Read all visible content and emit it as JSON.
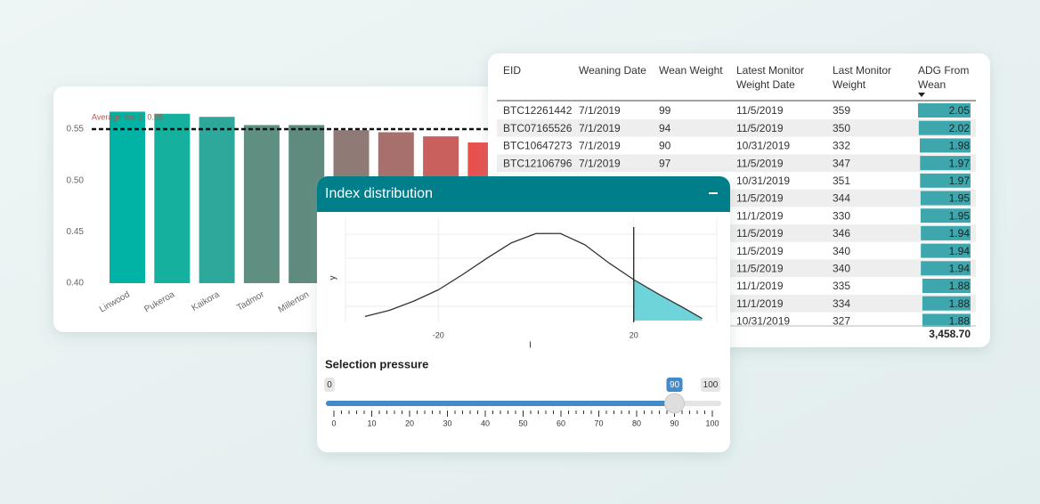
{
  "bar_panel": {
    "type": "bar",
    "annotation": "Average line 1: 0.55",
    "average": 0.55,
    "categories": [
      "Linwood",
      "Pukeroa",
      "Kaikora",
      "Tadmor",
      "Millerton",
      null,
      null,
      null,
      null
    ],
    "values": [
      0.567,
      0.565,
      0.562,
      0.554,
      0.554,
      0.549,
      0.547,
      0.543,
      0.537
    ],
    "colors": [
      "#00b3a4",
      "#16b09f",
      "#2ea89a",
      "#5e8f80",
      "#5f8b7e",
      "#8f7a76",
      "#a8706c",
      "#c9605e",
      "#e8504f"
    ],
    "ylim": [
      0.4,
      0.59
    ],
    "yticks": [
      {
        "value": 0.4,
        "label": "0.40"
      },
      {
        "value": 0.45,
        "label": "0.45"
      },
      {
        "value": 0.5,
        "label": "0.50"
      },
      {
        "value": 0.55,
        "label": "0.55"
      }
    ]
  },
  "table": {
    "headers": [
      [
        "EID"
      ],
      [
        "Weaning Date"
      ],
      [
        "Wean Weight"
      ],
      [
        "Latest Monitor",
        "Weight Date"
      ],
      [
        "Last Monitor",
        "Weight"
      ],
      [
        "ADG From",
        "Wean"
      ]
    ],
    "rows": [
      [
        "BTC12261442",
        "7/1/2019",
        99,
        "11/5/2019",
        359,
        2.05
      ],
      [
        "BTC07165526",
        "7/1/2019",
        94,
        "11/5/2019",
        350,
        2.02
      ],
      [
        "BTC10647273",
        "7/1/2019",
        90,
        "10/31/2019",
        332,
        1.98
      ],
      [
        "BTC12106796",
        "7/1/2019",
        97,
        "11/5/2019",
        347,
        1.97
      ],
      [
        null,
        null,
        null,
        "10/31/2019",
        351,
        1.97
      ],
      [
        null,
        null,
        null,
        "11/5/2019",
        344,
        1.95
      ],
      [
        null,
        null,
        null,
        "11/1/2019",
        330,
        1.95
      ],
      [
        null,
        null,
        null,
        "11/5/2019",
        346,
        1.94
      ],
      [
        null,
        null,
        null,
        "11/5/2019",
        340,
        1.94
      ],
      [
        null,
        null,
        null,
        "11/5/2019",
        340,
        1.94
      ],
      [
        null,
        null,
        null,
        "11/1/2019",
        335,
        1.88
      ],
      [
        null,
        null,
        null,
        "11/1/2019",
        334,
        1.88
      ],
      [
        null,
        null,
        null,
        "10/31/2019",
        327,
        1.88
      ]
    ],
    "total": "3,458.70"
  },
  "density_panel": {
    "type": "line",
    "title": "Index distribution",
    "x": [
      -35,
      -30,
      -25,
      -20,
      -15,
      -10,
      -5,
      0,
      5,
      10,
      15,
      20,
      25,
      30,
      34
    ],
    "y": [
      0.04,
      0.1,
      0.19,
      0.3,
      0.45,
      0.61,
      0.76,
      0.85,
      0.85,
      0.74,
      0.56,
      0.4,
      0.26,
      0.13,
      0.02
    ],
    "xlim": [
      -39,
      37
    ],
    "ylim": [
      0,
      1
    ],
    "xticks": [
      -20,
      20
    ],
    "xlabel": "I",
    "ylabel": "y",
    "threshold": 20,
    "color": "#333333",
    "fill": "#6fd3da"
  },
  "slider": {
    "label": "Selection pressure",
    "min": 0,
    "max": 100,
    "value": 90,
    "ticks": [
      0,
      10,
      20,
      30,
      40,
      50,
      60,
      70,
      80,
      90,
      100
    ]
  }
}
